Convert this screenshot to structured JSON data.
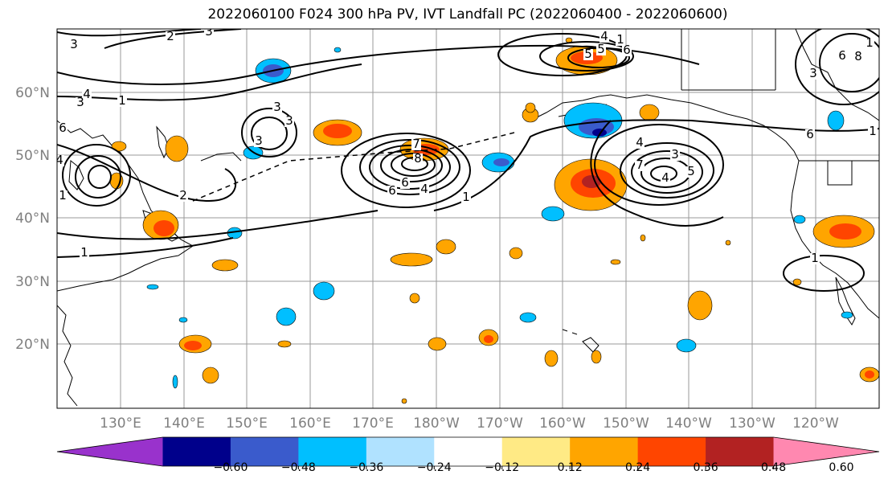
{
  "title": "2022060100 F024 300 hPa PV, IVT Landfall PC (2022060400 - 2022060600)",
  "lat_labels": [
    "60°N",
    "50°N",
    "40°N",
    "30°N",
    "20°N"
  ],
  "lon_labels": [
    "130°E",
    "140°E",
    "150°E",
    "160°E",
    "170°E",
    "180°W",
    "170°W",
    "160°W",
    "150°W",
    "140°W",
    "130°W",
    "120°W"
  ],
  "colorbar": {
    "colors": [
      "#9932cc",
      "#00008b",
      "#3a5bcc",
      "#00bfff",
      "#b0e2ff",
      "#ffffff",
      "#ffea85",
      "#ffa500",
      "#ff4500",
      "#b22222",
      "#ff88b0"
    ],
    "tick_labels": [
      "−0.60",
      "−0.48",
      "−0.36",
      "−0.24",
      "−0.12",
      "0.12",
      "0.24",
      "0.36",
      "0.48",
      "0.60"
    ]
  },
  "contour_labels": [
    "3",
    "2",
    "3",
    "4",
    "3",
    "1",
    "6",
    "4",
    "1",
    "2",
    "3",
    "3",
    "1",
    "6",
    "4",
    "1",
    "8",
    "6",
    "7",
    "4",
    "1",
    "6",
    "5",
    "5",
    "4",
    "3",
    "7",
    "4",
    "5",
    "6",
    "1",
    "1",
    "8",
    "6",
    "3",
    "1",
    "3"
  ]
}
